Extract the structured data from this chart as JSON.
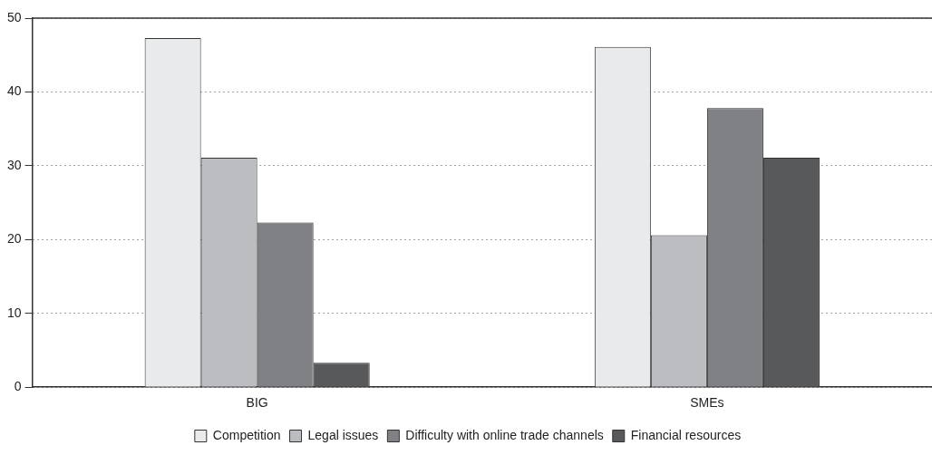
{
  "chart_data": {
    "type": "bar",
    "categories": [
      "BIG",
      "SMEs"
    ],
    "series": [
      {
        "name": "Competition",
        "color": "#e9eaec",
        "values": [
          47.3,
          46.1
        ]
      },
      {
        "name": "Legal issues",
        "color": "#bcbdc0",
        "values": [
          31.1,
          20.6
        ]
      },
      {
        "name": "Difficulty with online trade channels",
        "color": "#808185",
        "values": [
          22.3,
          37.8
        ]
      },
      {
        "name": "Financial resources",
        "color": "#58595b",
        "values": [
          3.3,
          31.1
        ]
      }
    ],
    "ylim": [
      0,
      50
    ],
    "yticks": [
      0,
      10,
      20,
      30,
      40,
      50
    ],
    "grid": "y",
    "legend": "bottom"
  }
}
